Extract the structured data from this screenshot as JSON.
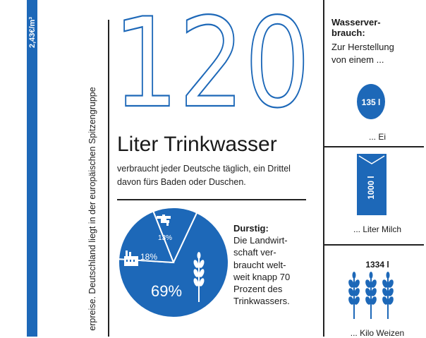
{
  "price": {
    "label": "2,43€/m³"
  },
  "side_note": "erpreise. Deutschland liegt in der europäischen Spitzengruppe",
  "hero": {
    "number": "120",
    "headline": "Liter Trinkwasser",
    "subline": "verbraucht jeder Deutsche täglich, ein Drittel davon fürs Baden oder Duschen."
  },
  "pie": {
    "segments": [
      {
        "label": "69%",
        "value": 69,
        "icon": "wheat-icon"
      },
      {
        "label": "18%",
        "value": 18,
        "icon": "factory-icon"
      },
      {
        "label": "13%",
        "value": 13,
        "icon": "faucet-icon"
      }
    ],
    "color": "#1d68b8"
  },
  "durstig": {
    "title": "Durstig:",
    "lines": [
      "Die Landwirt-",
      "schaft ver-",
      "braucht welt-",
      "weit knapp 70",
      "Prozent des",
      "Trinkwassers."
    ]
  },
  "consumption": {
    "title_lines": [
      "Wasserver-",
      "brauch:"
    ],
    "intro_lines": [
      "Zur Herstellung",
      "von einem ..."
    ],
    "items": [
      {
        "amount": "135 l",
        "caption": "... Ei",
        "icon": "egg-icon"
      },
      {
        "amount": "1000 l",
        "caption": "... Liter Milch",
        "icon": "milk-carton-icon"
      },
      {
        "amount": "1334 l",
        "caption": "... Kilo Weizen",
        "icon": "wheat-icon"
      }
    ]
  },
  "colors": {
    "accent": "#1d68b8",
    "text": "#1a1a1a"
  }
}
